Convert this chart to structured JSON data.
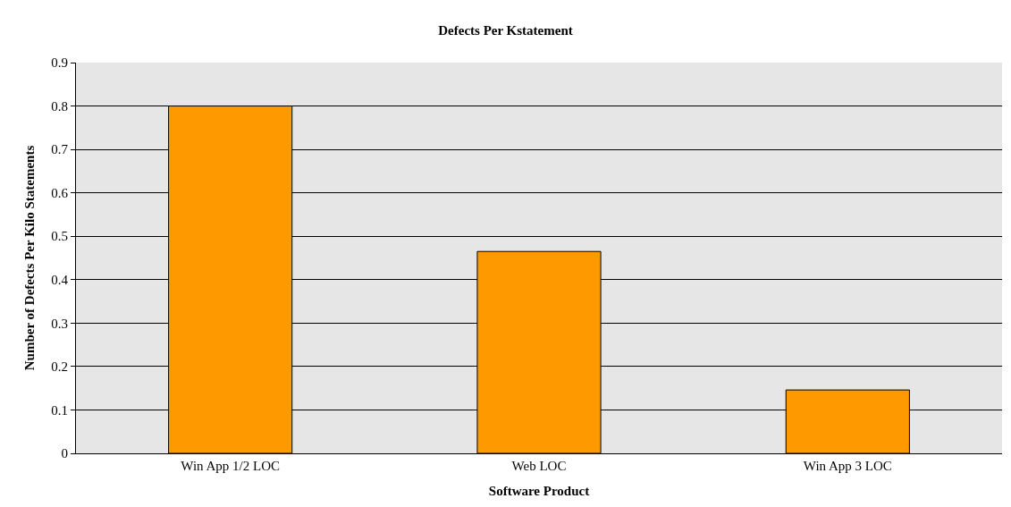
{
  "chart_data": {
    "type": "bar",
    "title": "Defects Per Kstatement",
    "xlabel": "Software Product",
    "ylabel": "Number of Defects Per Kilo Statements",
    "categories": [
      "Win App 1/2 LOC",
      "Web LOC",
      "Win App 3 LOC"
    ],
    "values": [
      0.8,
      0.465,
      0.146
    ],
    "color": "#ff9900",
    "ylim": [
      0,
      0.9
    ],
    "yticks": [
      0,
      0.1,
      0.2,
      0.3,
      0.4,
      0.5,
      0.6,
      0.7,
      0.8,
      0.9
    ],
    "grid": "y"
  }
}
